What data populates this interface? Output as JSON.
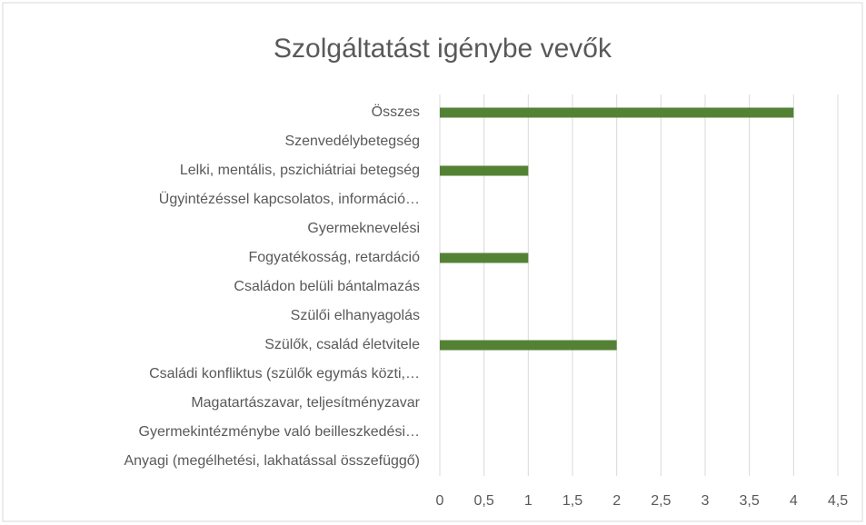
{
  "chart_data": {
    "type": "bar",
    "orientation": "horizontal",
    "title": "Szolgáltatást igénybe vevők",
    "categories": [
      "Összes",
      "Szenvedélybetegség",
      "Lelki, mentális, pszichiátriai betegség",
      "Ügyintézéssel kapcsolatos, információ…",
      "Gyermeknevelési",
      "Fogyatékosság, retardáció",
      "Családon belüli bántalmazás",
      "Szülői elhanyagolás",
      "Szülők, család életvitele",
      "Családi konfliktus (szülők egymás közti,…",
      "Magatartászavar, teljesítményzavar",
      "Gyermekintézménybe való beilleszkedési…",
      "Anyagi (megélhetési, lakhatással összefüggő)"
    ],
    "values": [
      4,
      0,
      1,
      0,
      0,
      1,
      0,
      0,
      2,
      0,
      0,
      0,
      0
    ],
    "color": "#548235",
    "xlim": [
      0,
      4.5
    ],
    "xticks": [
      0,
      {
        "value": 0.5,
        "label": "0,5"
      },
      1,
      {
        "value": 1.5,
        "label": "1,5"
      },
      2,
      {
        "value": 2.5,
        "label": "2,5"
      },
      3,
      {
        "value": 3.5,
        "label": "3,5"
      },
      4,
      {
        "value": 4.5,
        "label": "4,5"
      }
    ],
    "grid": true
  }
}
